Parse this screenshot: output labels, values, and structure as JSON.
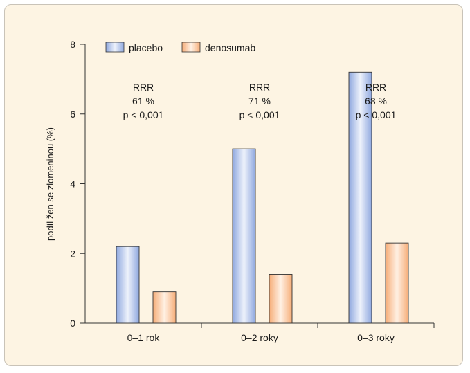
{
  "chart_data": {
    "type": "bar",
    "title": "",
    "ylabel": "podíl žen se zlomeninou (%)",
    "xlabel": "",
    "ylim": [
      0,
      8
    ],
    "yticks": [
      0,
      2,
      4,
      6,
      8
    ],
    "categories": [
      "0–1 rok",
      "0–2 roky",
      "0–3 roky"
    ],
    "series": [
      {
        "name": "placebo",
        "values": [
          2.2,
          5.0,
          7.2
        ],
        "color": "#9db4e4"
      },
      {
        "name": "denosumab",
        "values": [
          0.9,
          1.4,
          2.3
        ],
        "color": "#f7b98a"
      }
    ],
    "annotations": [
      {
        "line1": "RRR",
        "line2": "61 %",
        "line3": "p < 0,001"
      },
      {
        "line1": "RRR",
        "line2": "71 %",
        "line3": "p < 0,001"
      },
      {
        "line1": "RRR",
        "line2": "68 %",
        "line3": "p < 0,001"
      }
    ],
    "legend": {
      "position": "top-left"
    },
    "grid": false
  }
}
